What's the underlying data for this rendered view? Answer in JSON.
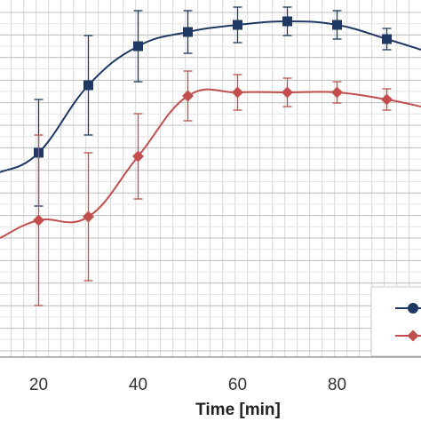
{
  "chart_data": {
    "type": "line",
    "xlabel": "Time [min]",
    "ylabel": "",
    "title": "",
    "xlim": [
      12,
      96
    ],
    "x_ticks": [
      20,
      40,
      60,
      80
    ],
    "grid": true,
    "legend_position": "bottom-right",
    "series": [
      {
        "color": "#1f3864",
        "marker": "square",
        "x": [
          20,
          30,
          40,
          50,
          60,
          70,
          80,
          90
        ],
        "y": [
          0.62,
          0.81,
          0.92,
          0.96,
          0.98,
          0.99,
          0.98,
          0.94
        ],
        "err": [
          0.15,
          0.14,
          0.1,
          0.06,
          0.05,
          0.04,
          0.04,
          0.03
        ]
      },
      {
        "color": "#c0504d",
        "marker": "diamond",
        "x": [
          20,
          30,
          40,
          50,
          60,
          70,
          80,
          90
        ],
        "y": [
          0.43,
          0.44,
          0.61,
          0.78,
          0.79,
          0.79,
          0.79,
          0.77
        ],
        "err": [
          0.24,
          0.18,
          0.12,
          0.07,
          0.05,
          0.04,
          0.03,
          0.03
        ]
      }
    ]
  }
}
